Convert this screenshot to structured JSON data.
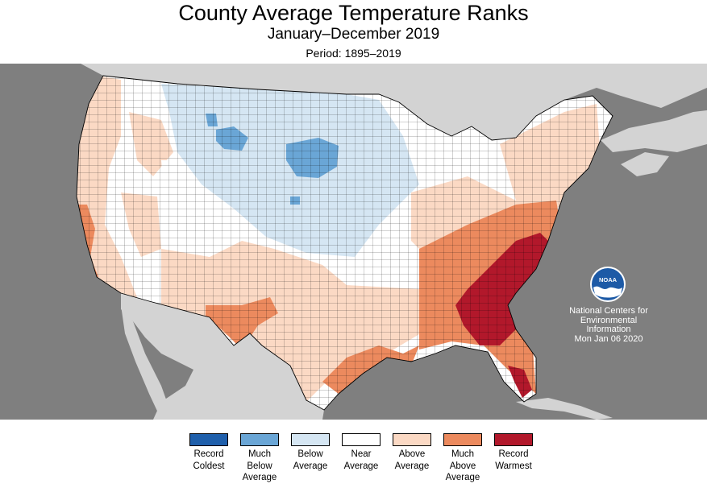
{
  "header": {
    "title": "County Average Temperature Ranks",
    "subtitle": "January–December 2019",
    "period": "Period: 1895–2019"
  },
  "map": {
    "subject": "Contiguous United States counties",
    "water_color": "#7f7f7f",
    "land_outside_color": "#d3d3d3",
    "county_border_color": "#000000"
  },
  "logo": {
    "text": "NOAA",
    "icon": "noaa-logo-icon"
  },
  "credit": {
    "line1": "National Centers for",
    "line2": "Environmental",
    "line3": "Information",
    "line4": "Mon Jan 06 2020"
  },
  "legend": {
    "items": [
      {
        "label1": "Record",
        "label2": "Coldest",
        "label3": "",
        "color": "#1f5fab"
      },
      {
        "label1": "Much",
        "label2": "Below",
        "label3": "Average",
        "color": "#6aa6d6"
      },
      {
        "label1": "Below",
        "label2": "Average",
        "label3": "",
        "color": "#d5e6f3"
      },
      {
        "label1": "Near",
        "label2": "Average",
        "label3": "",
        "color": "#ffffff"
      },
      {
        "label1": "Above",
        "label2": "Average",
        "label3": "",
        "color": "#fbd9c4"
      },
      {
        "label1": "Much",
        "label2": "Above",
        "label3": "Average",
        "color": "#ec8a5e"
      },
      {
        "label1": "Record",
        "label2": "Warmest",
        "label3": "",
        "color": "#b2182b"
      }
    ]
  }
}
